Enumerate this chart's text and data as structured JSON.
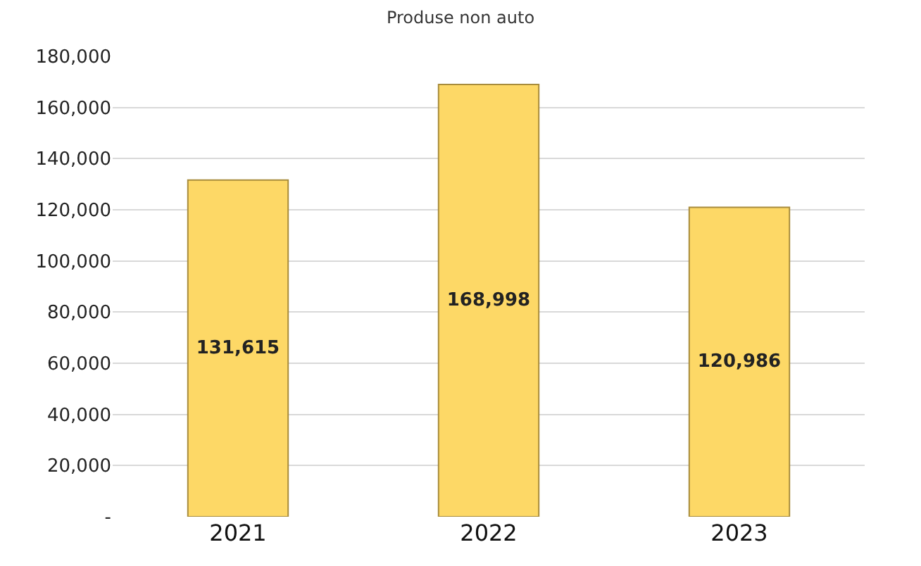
{
  "chart_data": {
    "type": "bar",
    "title": "Produse non auto",
    "categories": [
      "2021",
      "2022",
      "2023"
    ],
    "values": [
      131615,
      168998,
      120986
    ],
    "color": "#fdd866",
    "value_labels": [
      "131,615",
      "168,998",
      "120,986"
    ],
    "ylim": [
      0,
      180000
    ],
    "yticks": [
      {
        "value": 0,
        "label": "-"
      },
      {
        "value": 20000,
        "label": "20,000"
      },
      {
        "value": 40000,
        "label": "40,000"
      },
      {
        "value": 60000,
        "label": "60,000"
      },
      {
        "value": 80000,
        "label": "80,000"
      },
      {
        "value": 100000,
        "label": "100,000"
      },
      {
        "value": 120000,
        "label": "120,000"
      },
      {
        "value": 140000,
        "label": "140,000"
      },
      {
        "value": 160000,
        "label": "160,000"
      },
      {
        "value": 180000,
        "label": "180,000"
      }
    ],
    "grid": "y"
  }
}
